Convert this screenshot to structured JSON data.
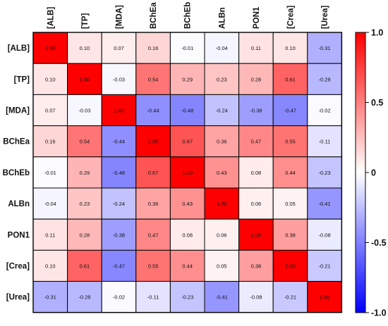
{
  "chart_data": {
    "type": "heatmap",
    "title": "",
    "xlabel": "",
    "ylabel": "",
    "row_labels": [
      "[ALB]",
      "[TP]",
      "[MDA]",
      "BChEa",
      "BChEb",
      "ALBn",
      "PON1",
      "[Crea]",
      "[Urea]"
    ],
    "col_labels": [
      "[ALB]",
      "[TP]",
      "[MDA]",
      "BChEa",
      "BChEb",
      "ALBn",
      "PON1",
      "[Crea]",
      "[Urea]"
    ],
    "values": [
      [
        1.0,
        0.1,
        0.07,
        0.16,
        -0.01,
        -0.04,
        0.11,
        0.1,
        -0.31
      ],
      [
        0.1,
        1.0,
        -0.03,
        0.54,
        0.29,
        0.23,
        0.28,
        0.61,
        -0.28
      ],
      [
        0.07,
        -0.03,
        1.0,
        -0.44,
        -0.48,
        -0.24,
        -0.38,
        -0.47,
        -0.02
      ],
      [
        0.16,
        0.54,
        -0.44,
        1.0,
        0.67,
        0.36,
        0.47,
        0.55,
        -0.11
      ],
      [
        -0.01,
        0.29,
        -0.48,
        0.67,
        1.0,
        0.43,
        0.08,
        0.44,
        -0.23
      ],
      [
        -0.04,
        0.23,
        -0.24,
        0.36,
        0.43,
        1.0,
        0.06,
        0.05,
        -0.41
      ],
      [
        0.11,
        0.28,
        -0.38,
        0.47,
        0.08,
        0.06,
        1.0,
        0.38,
        -0.08
      ],
      [
        0.1,
        0.61,
        -0.47,
        0.55,
        0.44,
        0.05,
        0.38,
        1.0,
        -0.21
      ],
      [
        -0.31,
        -0.28,
        -0.02,
        -0.11,
        -0.23,
        -0.41,
        -0.08,
        -0.21,
        1.0
      ]
    ],
    "value_labels": [
      [
        "1.00",
        "0.10",
        "0.07",
        "0.16",
        "-0.01",
        "-0.04",
        "0.11",
        "0.10",
        "-0.31"
      ],
      [
        "0.10",
        "1.00",
        "-0.03",
        "0.54",
        "0.29",
        "0.23",
        "0.28",
        "0.61",
        "-0.28"
      ],
      [
        "0.07",
        "-0.03",
        "1.00",
        "-0.44",
        "-0.48",
        "-0.24",
        "-0.38",
        "-0.47",
        "-0.02"
      ],
      [
        "0.16",
        "0.54",
        "-0.44",
        "1.00",
        "0.67",
        "0.36",
        "0.47",
        "0.55",
        "-0.11"
      ],
      [
        "-0.01",
        "0.29",
        "-0.48",
        "0.67",
        "1.00",
        "0.43",
        "0.08",
        "0.44",
        "-0.23"
      ],
      [
        "-0.04",
        "0.23",
        "-0.24",
        "0.36",
        "0.43",
        "1.00",
        "0.06",
        "0.05",
        "-0.41"
      ],
      [
        "0.11",
        "0.28",
        "-0.38",
        "0.47",
        "0.08",
        "0.06",
        "1.00",
        "0.38",
        "-0.08"
      ],
      [
        "0.10",
        "0.61",
        "-0.47",
        "0.55",
        "0.44",
        "0.05",
        "0.38",
        "1.00",
        "-0.21"
      ],
      [
        "-0.31",
        "-0.28",
        "-0.02",
        "-0.11",
        "-0.23",
        "-0.41",
        "-0.08",
        "-0.21",
        "1.00"
      ]
    ],
    "colorbar": {
      "range": [
        -1.0,
        1.0
      ],
      "ticks": [
        1.0,
        0.5,
        0,
        -0.5,
        -1.0
      ],
      "tick_labels": [
        "1.0",
        "0.5",
        "0",
        "-0.5",
        "-1.0"
      ]
    },
    "colors": {
      "positive": "#ff0000",
      "zero": "#ffffff",
      "negative": "#0000ff"
    },
    "grid": true,
    "legend": "right"
  }
}
